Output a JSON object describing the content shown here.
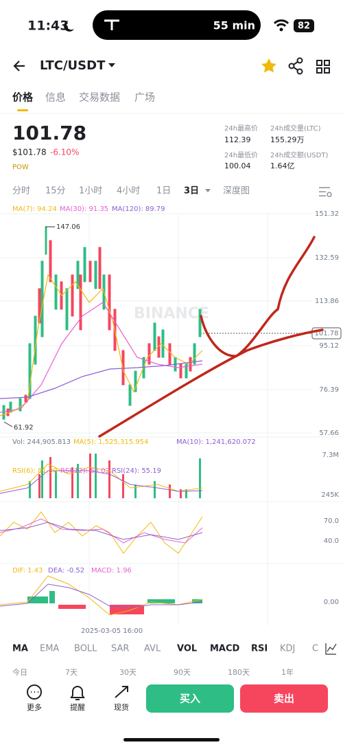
{
  "status_bar": {
    "time": "11:43",
    "activity": "55 min",
    "battery": "82"
  },
  "header": {
    "pair": "LTC/USDT"
  },
  "tabs": [
    "价格",
    "信息",
    "交易数据",
    "广场"
  ],
  "price": {
    "last": "101.78",
    "usd": "$101.78",
    "change": "-6.10%",
    "tag": "POW"
  },
  "stats": [
    {
      "label": "24h最高价",
      "value": "112.39"
    },
    {
      "label": "24h成交量(LTC)",
      "value": "155.29万"
    },
    {
      "label": "24h最低价",
      "value": "100.04"
    },
    {
      "label": "24h成交额(USDT)",
      "value": "1.64亿"
    }
  ],
  "intervals": [
    "分时",
    "15分",
    "1小时",
    "4小时",
    "1日",
    "3日",
    "深度图"
  ],
  "main_chart": {
    "ma": [
      "MA(7): 94.24",
      "MA(30): 91.35",
      "MA(120): 89.79"
    ],
    "axis": [
      "151.32",
      "132.59",
      "113.86",
      "95.12",
      "76.39",
      "57.66"
    ],
    "current": "101.78",
    "high": "147.06",
    "low": "61.92",
    "watermark": "BINANCE"
  },
  "volume_chart": {
    "labels": [
      "Vol: 244,905.813",
      "MA(5): 1,525,315.954",
      "MA(10): 1,241,620.072"
    ],
    "axis": [
      "7.3M",
      "245K"
    ]
  },
  "rsi_chart": {
    "labels": [
      "RSI(6): 81.30",
      "RSI(12): 65.02",
      "RSI(24): 55.19"
    ],
    "axis": [
      "70.0",
      "40.0"
    ]
  },
  "macd_chart": {
    "labels": [
      "DIF: 1.43",
      "DEA: -0.52",
      "MACD: 1.96"
    ],
    "axis": [
      "0.00"
    ],
    "date": "2025-03-05 16:00"
  },
  "indicators": [
    "MA",
    "EMA",
    "BOLL",
    "SAR",
    "AVL",
    "VOL",
    "MACD",
    "RSI",
    "KDJ",
    "C"
  ],
  "periods": [
    "今日",
    "7天",
    "30天",
    "90天",
    "180天",
    "1年"
  ],
  "bottom_bar": {
    "actions": [
      "更多",
      "提醒",
      "现货"
    ],
    "buy": "买入",
    "sell": "卖出"
  }
}
